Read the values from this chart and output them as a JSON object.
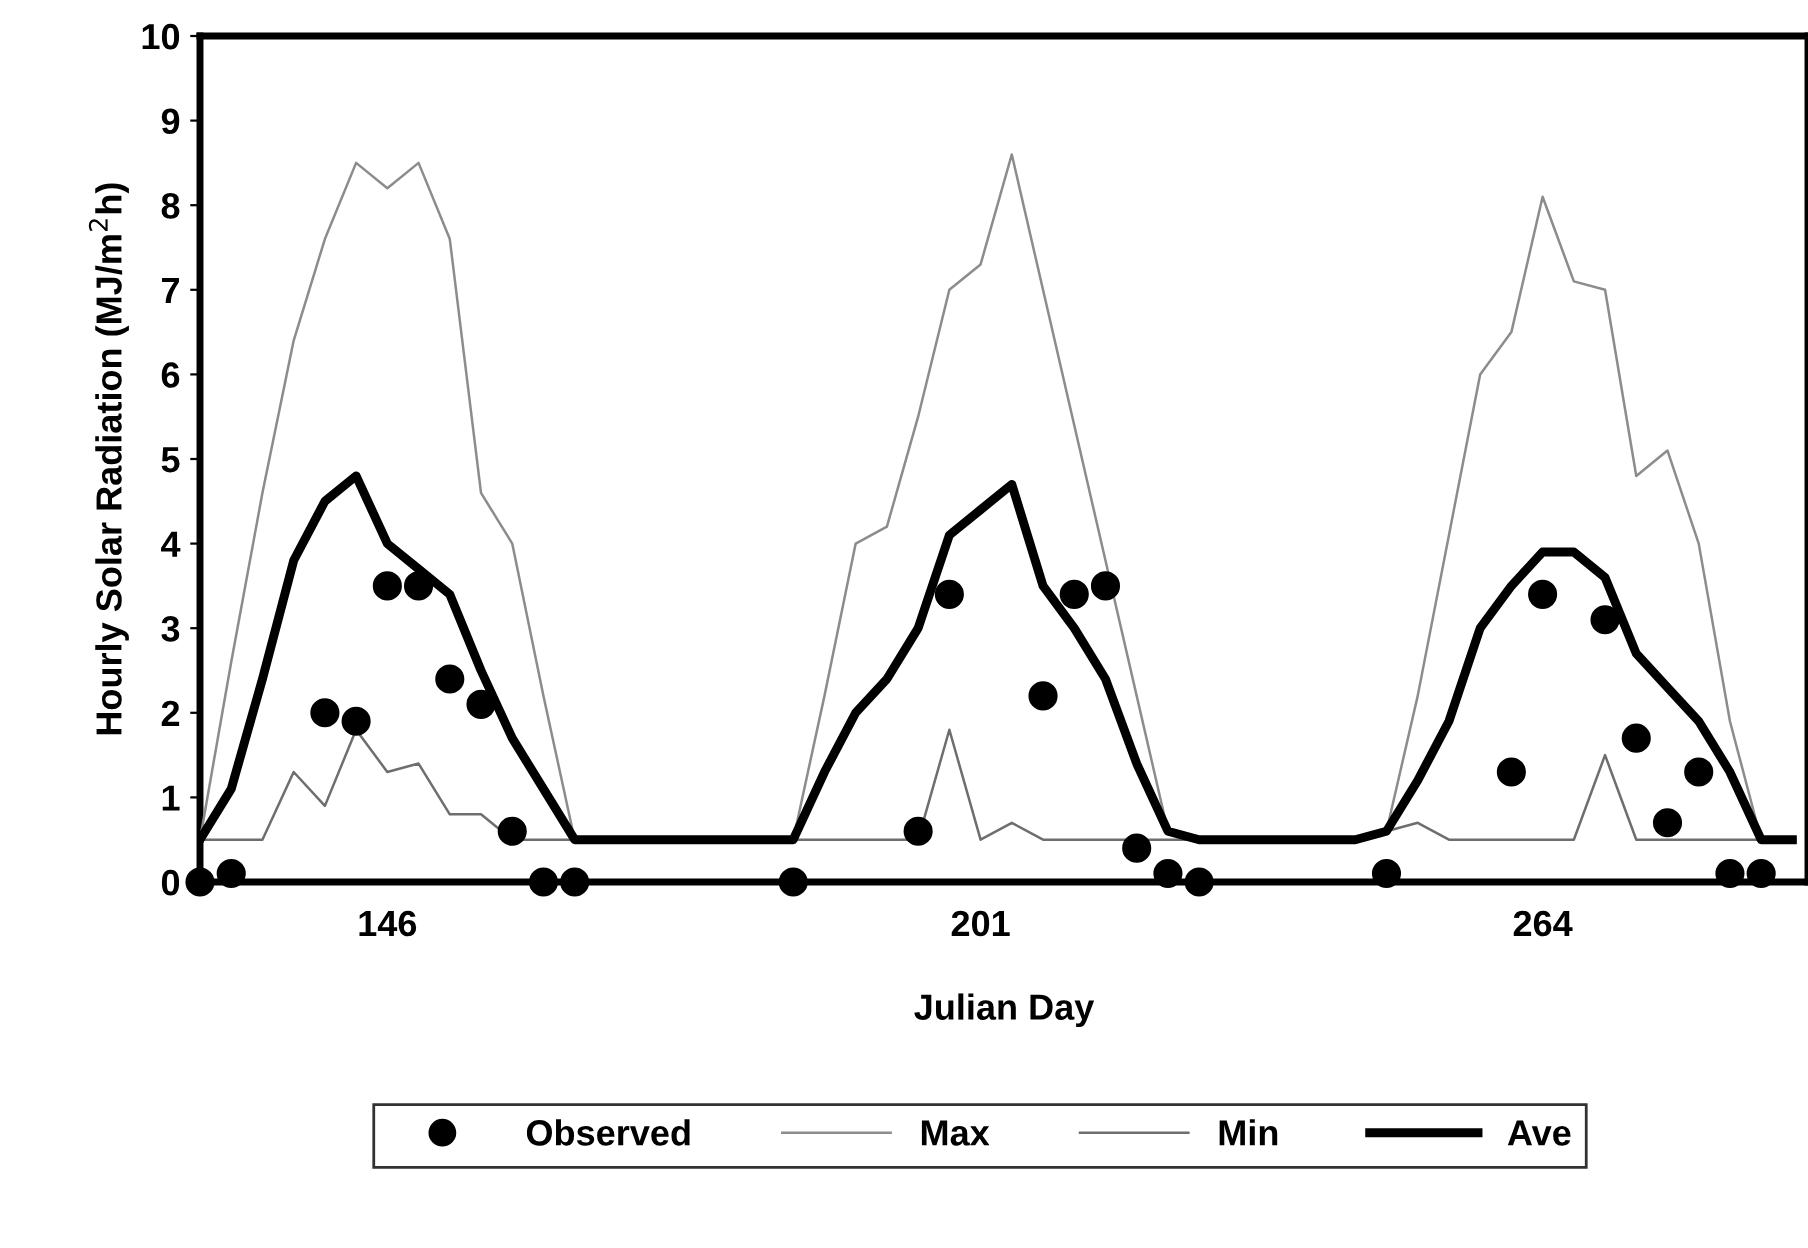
{
  "chart_data": {
    "type": "line",
    "xlabel": "Julian Day",
    "ylabel": "Hourly Solar Radiation (MJ/m$^{2}$h)",
    "categories": [
      null,
      null,
      null,
      null,
      null,
      null,
      "146",
      null,
      null,
      null,
      null,
      null,
      null,
      null,
      null,
      null,
      null,
      null,
      null,
      null,
      null,
      null,
      null,
      null,
      null,
      "201",
      null,
      null,
      null,
      null,
      null,
      null,
      null,
      null,
      null,
      null,
      null,
      null,
      null,
      null,
      null,
      null,
      null,
      "264",
      null,
      null,
      null,
      null,
      null,
      null,
      null,
      null
    ],
    "ylim": [
      0,
      10
    ],
    "yticks": [
      0,
      1,
      2,
      3,
      4,
      5,
      6,
      7,
      8,
      9,
      10
    ],
    "grid": false,
    "legend": "bottom",
    "series": [
      {
        "name": "Observed",
        "type": "scatter",
        "marker": "circle",
        "color": "#000000",
        "values": [
          0,
          0.1,
          null,
          null,
          2.0,
          1.9,
          3.5,
          3.5,
          2.4,
          2.1,
          0.6,
          0,
          0,
          null,
          null,
          null,
          null,
          null,
          null,
          0,
          null,
          null,
          null,
          0.6,
          3.4,
          null,
          null,
          2.2,
          3.4,
          3.5,
          0.4,
          0.1,
          0,
          null,
          null,
          null,
          null,
          null,
          0.1,
          null,
          null,
          null,
          1.3,
          3.4,
          null,
          3.1,
          1.7,
          0.7,
          1.3,
          0.1,
          0.1,
          null
        ]
      },
      {
        "name": "Max",
        "color": "#8c8c8c",
        "values": [
          0.5,
          2.6,
          4.6,
          6.4,
          7.6,
          8.5,
          8.2,
          8.5,
          7.6,
          4.6,
          4.0,
          2.2,
          0.5,
          0.5,
          0.5,
          0.5,
          0.5,
          0.5,
          0.5,
          0.5,
          2.2,
          4.0,
          4.2,
          5.5,
          7.0,
          7.3,
          8.6,
          7.0,
          5.4,
          3.8,
          2.2,
          0.6,
          0.5,
          0.5,
          0.5,
          0.5,
          0.5,
          0.5,
          0.6,
          2.2,
          4.1,
          6.0,
          6.5,
          8.1,
          7.1,
          7.0,
          4.8,
          5.1,
          4.0,
          1.9,
          0.5,
          0.5
        ]
      },
      {
        "name": "Min",
        "color": "#6e6e6e",
        "values": [
          0.5,
          0.5,
          0.5,
          1.3,
          0.9,
          1.8,
          1.3,
          1.4,
          0.8,
          0.8,
          0.5,
          0.5,
          0.5,
          0.5,
          0.5,
          0.5,
          0.5,
          0.5,
          0.5,
          0.5,
          0.5,
          0.5,
          0.5,
          0.5,
          1.8,
          0.5,
          0.7,
          0.5,
          0.5,
          0.5,
          0.5,
          0.5,
          0.5,
          0.5,
          0.5,
          0.5,
          0.5,
          0.5,
          0.6,
          0.7,
          0.5,
          0.5,
          0.5,
          0.5,
          0.5,
          1.5,
          0.5,
          0.5,
          0.5,
          0.5,
          0.5,
          0.5
        ]
      },
      {
        "name": "Ave",
        "color": "#000000",
        "values": [
          0.5,
          1.1,
          2.4,
          3.8,
          4.5,
          4.8,
          4.0,
          3.7,
          3.4,
          2.5,
          1.7,
          1.1,
          0.5,
          0.5,
          0.5,
          0.5,
          0.5,
          0.5,
          0.5,
          0.5,
          1.3,
          2.0,
          2.4,
          3.0,
          4.1,
          4.4,
          4.7,
          3.5,
          3.0,
          2.4,
          1.4,
          0.6,
          0.5,
          0.5,
          0.5,
          0.5,
          0.5,
          0.5,
          0.6,
          1.2,
          1.9,
          3.0,
          3.5,
          3.9,
          3.9,
          3.6,
          2.7,
          2.3,
          1.9,
          1.3,
          0.5,
          0.5
        ]
      }
    ]
  }
}
